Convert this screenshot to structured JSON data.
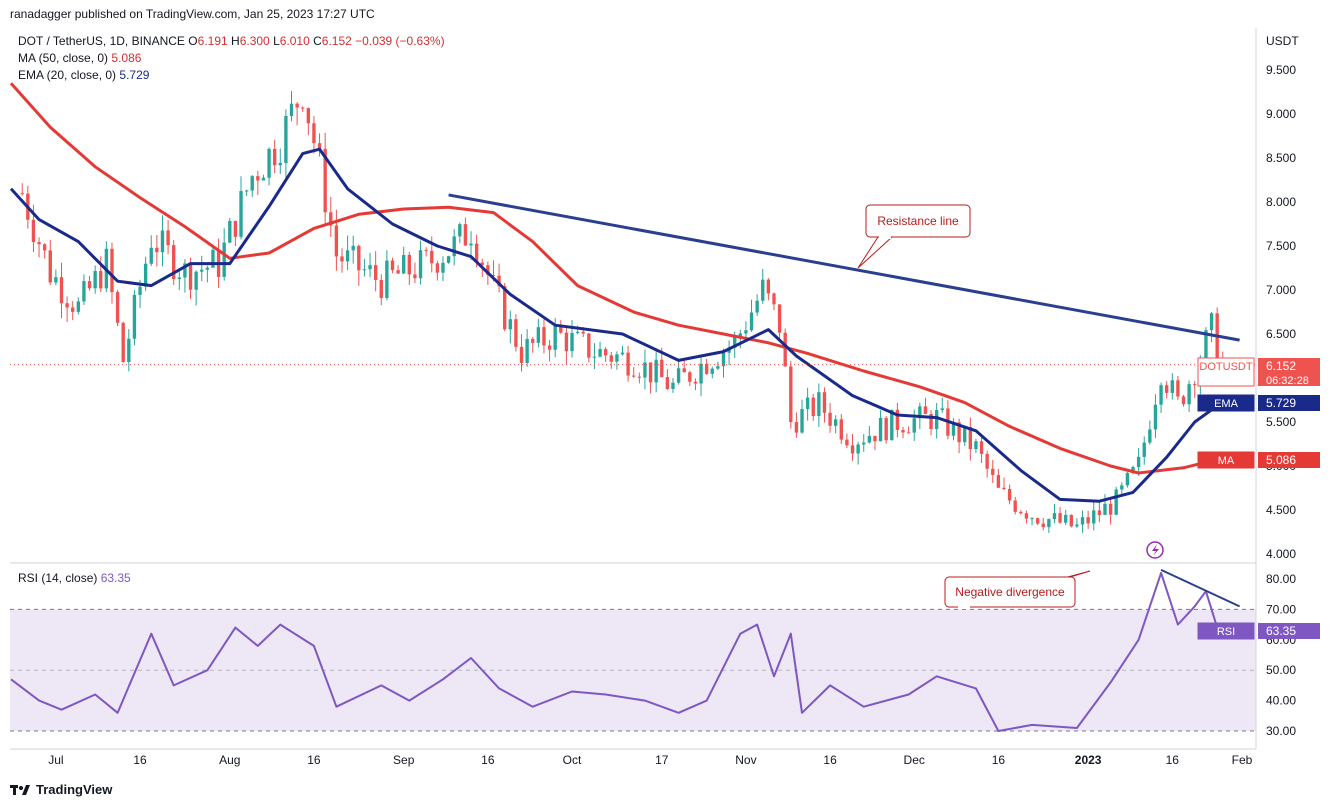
{
  "attribution": "ranadagger published on TradingView.com, Jan 25, 2023 17:27 UTC",
  "legend": {
    "symbol": "DOT / TetherUS, 1D, BINANCE",
    "o_label": "O",
    "o_value": "6.191",
    "h_label": "H",
    "h_value": "6.300",
    "l_label": "L",
    "l_value": "6.010",
    "c_label": "C",
    "c_value": "6.152",
    "change": "−0.039 (−0.63%)",
    "ma_label": "MA (50, close, 0)",
    "ma_value": "5.086",
    "ema_label": "EMA (20, close, 0)",
    "ema_value": "5.729",
    "rsi_label": "RSI (14, close)",
    "rsi_value": "63.35"
  },
  "price_axis": {
    "currency": "USDT",
    "ticks": [
      "9.500",
      "9.000",
      "8.500",
      "8.000",
      "7.500",
      "7.000",
      "6.500",
      "6.000",
      "5.500",
      "5.000",
      "4.500",
      "4.000"
    ]
  },
  "rsi_axis": {
    "ticks": [
      "80.00",
      "70.00",
      "60.00",
      "50.00",
      "40.00",
      "30.00"
    ]
  },
  "time_axis": [
    "Jul",
    "16",
    "Aug",
    "16",
    "Sep",
    "16",
    "Oct",
    "17",
    "Nov",
    "16",
    "Dec",
    "16",
    "2023",
    "16",
    "Feb"
  ],
  "tags": {
    "price_symbol": "DOTUSDT",
    "price_value": "6.152",
    "countdown": "06:32:28",
    "ema_label": "EMA",
    "ema_value": "5.729",
    "ma_label": "MA",
    "ma_value": "5.086",
    "rsi_label": "RSI",
    "rsi_value": "63.35"
  },
  "annotations": {
    "resistance": "Resistance line",
    "divergence": "Negative divergence"
  },
  "logo_text": "TradingView",
  "colors": {
    "up": "#26a69a",
    "down": "#ef5350",
    "ema": "#1a2a8a",
    "ma": "#e53935",
    "rsi": "#7e57c2",
    "rsi_band": "#ede7f6",
    "trend": "#2a3f8f"
  },
  "chart_data": {
    "type": "candlestick",
    "title": "DOT / TetherUS, 1D, BINANCE",
    "ylim": [
      3.95,
      9.8
    ],
    "rsi_ylim": [
      27,
      86
    ],
    "x_start": "2023-06-24",
    "x_range_days": 232,
    "price_anchors": [
      [
        "2022-06-25",
        8.1
      ],
      [
        "2022-06-30",
        7.2
      ],
      [
        "2022-07-05",
        6.8
      ],
      [
        "2022-07-10",
        7.3
      ],
      [
        "2022-07-13",
        6.2
      ],
      [
        "2022-07-18",
        7.6
      ],
      [
        "2022-07-24",
        7.2
      ],
      [
        "2022-07-30",
        7.3
      ],
      [
        "2022-08-05",
        8.3
      ],
      [
        "2022-08-10",
        8.7
      ],
      [
        "2022-08-14",
        9.3
      ],
      [
        "2022-08-17",
        8.4
      ],
      [
        "2022-08-20",
        7.4
      ],
      [
        "2022-08-28",
        7.1
      ],
      [
        "2022-09-05",
        7.3
      ],
      [
        "2022-09-10",
        7.5
      ],
      [
        "2022-09-13",
        7.7
      ],
      [
        "2022-09-17",
        7.0
      ],
      [
        "2022-09-22",
        6.3
      ],
      [
        "2022-09-28",
        6.5
      ],
      [
        "2022-10-05",
        6.3
      ],
      [
        "2022-10-12",
        6.2
      ],
      [
        "2022-10-19",
        5.9
      ],
      [
        "2022-10-25",
        6.2
      ],
      [
        "2022-10-30",
        6.4
      ],
      [
        "2022-11-04",
        7.0
      ],
      [
        "2022-11-07",
        6.6
      ],
      [
        "2022-11-09",
        5.5
      ],
      [
        "2022-11-14",
        5.7
      ],
      [
        "2022-11-20",
        5.3
      ],
      [
        "2022-11-28",
        5.5
      ],
      [
        "2022-12-05",
        5.55
      ],
      [
        "2022-12-12",
        5.2
      ],
      [
        "2022-12-16",
        4.7
      ],
      [
        "2022-12-22",
        4.45
      ],
      [
        "2022-12-30",
        4.3
      ],
      [
        "2023-01-06",
        4.6
      ],
      [
        "2023-01-10",
        5.0
      ],
      [
        "2023-01-14",
        6.1
      ],
      [
        "2023-01-17",
        5.7
      ],
      [
        "2023-01-20",
        6.1
      ],
      [
        "2023-01-23",
        6.55
      ],
      [
        "2023-01-25",
        6.15
      ]
    ],
    "ema20": [
      [
        "2022-06-23",
        8.15
      ],
      [
        "2022-06-28",
        7.8
      ],
      [
        "2022-07-05",
        7.55
      ],
      [
        "2022-07-12",
        7.1
      ],
      [
        "2022-07-18",
        7.05
      ],
      [
        "2022-07-25",
        7.3
      ],
      [
        "2022-08-01",
        7.3
      ],
      [
        "2022-08-08",
        7.95
      ],
      [
        "2022-08-14",
        8.55
      ],
      [
        "2022-08-17",
        8.6
      ],
      [
        "2022-08-22",
        8.15
      ],
      [
        "2022-08-30",
        7.75
      ],
      [
        "2022-09-07",
        7.5
      ],
      [
        "2022-09-13",
        7.38
      ],
      [
        "2022-09-20",
        6.95
      ],
      [
        "2022-09-28",
        6.6
      ],
      [
        "2022-10-10",
        6.5
      ],
      [
        "2022-10-20",
        6.2
      ],
      [
        "2022-10-28",
        6.3
      ],
      [
        "2022-11-05",
        6.55
      ],
      [
        "2022-11-10",
        6.25
      ],
      [
        "2022-11-20",
        5.8
      ],
      [
        "2022-11-28",
        5.58
      ],
      [
        "2022-12-05",
        5.55
      ],
      [
        "2022-12-12",
        5.4
      ],
      [
        "2022-12-20",
        4.95
      ],
      [
        "2022-12-27",
        4.62
      ],
      [
        "2023-01-03",
        4.6
      ],
      [
        "2023-01-09",
        4.7
      ],
      [
        "2023-01-15",
        5.1
      ],
      [
        "2023-01-20",
        5.5
      ],
      [
        "2023-01-25",
        5.73
      ]
    ],
    "ma50": [
      [
        "2022-06-23",
        9.35
      ],
      [
        "2022-06-30",
        8.85
      ],
      [
        "2022-07-08",
        8.4
      ],
      [
        "2022-07-16",
        8.05
      ],
      [
        "2022-07-24",
        7.72
      ],
      [
        "2022-08-01",
        7.36
      ],
      [
        "2022-08-08",
        7.42
      ],
      [
        "2022-08-16",
        7.7
      ],
      [
        "2022-08-24",
        7.86
      ],
      [
        "2022-09-01",
        7.92
      ],
      [
        "2022-09-09",
        7.94
      ],
      [
        "2022-09-17",
        7.88
      ],
      [
        "2022-09-24",
        7.55
      ],
      [
        "2022-10-02",
        7.05
      ],
      [
        "2022-10-12",
        6.75
      ],
      [
        "2022-10-20",
        6.6
      ],
      [
        "2022-10-28",
        6.5
      ],
      [
        "2022-11-05",
        6.4
      ],
      [
        "2022-11-12",
        6.28
      ],
      [
        "2022-11-22",
        6.08
      ],
      [
        "2022-12-02",
        5.9
      ],
      [
        "2022-12-10",
        5.72
      ],
      [
        "2022-12-18",
        5.45
      ],
      [
        "2022-12-27",
        5.2
      ],
      [
        "2023-01-05",
        5.0
      ],
      [
        "2023-01-10",
        4.92
      ],
      [
        "2023-01-18",
        4.98
      ],
      [
        "2023-01-25",
        5.09
      ]
    ],
    "rsi14": [
      [
        "2022-06-23",
        47
      ],
      [
        "2022-06-28",
        40
      ],
      [
        "2022-07-02",
        37
      ],
      [
        "2022-07-08",
        42
      ],
      [
        "2022-07-12",
        36
      ],
      [
        "2022-07-18",
        62
      ],
      [
        "2022-07-22",
        45
      ],
      [
        "2022-07-28",
        50
      ],
      [
        "2022-08-02",
        64
      ],
      [
        "2022-08-06",
        58
      ],
      [
        "2022-08-10",
        65
      ],
      [
        "2022-08-16",
        58
      ],
      [
        "2022-08-20",
        38
      ],
      [
        "2022-08-28",
        45
      ],
      [
        "2022-09-02",
        40
      ],
      [
        "2022-09-08",
        47
      ],
      [
        "2022-09-13",
        54
      ],
      [
        "2022-09-18",
        44
      ],
      [
        "2022-09-24",
        38
      ],
      [
        "2022-10-01",
        43
      ],
      [
        "2022-10-07",
        42
      ],
      [
        "2022-10-14",
        40
      ],
      [
        "2022-10-20",
        36
      ],
      [
        "2022-10-25",
        40
      ],
      [
        "2022-10-31",
        62
      ],
      [
        "2022-11-03",
        65
      ],
      [
        "2022-11-06",
        48
      ],
      [
        "2022-11-09",
        62
      ],
      [
        "2022-11-11",
        36
      ],
      [
        "2022-11-16",
        45
      ],
      [
        "2022-11-22",
        38
      ],
      [
        "2022-11-30",
        42
      ],
      [
        "2022-12-05",
        48
      ],
      [
        "2022-12-12",
        44
      ],
      [
        "2022-12-16",
        30
      ],
      [
        "2022-12-22",
        32
      ],
      [
        "2022-12-30",
        31
      ],
      [
        "2023-01-05",
        46
      ],
      [
        "2023-01-10",
        60
      ],
      [
        "2023-01-14",
        82
      ],
      [
        "2023-01-17",
        65
      ],
      [
        "2023-01-20",
        71
      ],
      [
        "2023-01-22",
        76
      ],
      [
        "2023-01-24",
        64
      ],
      [
        "2023-01-25",
        63.35
      ]
    ],
    "resistance_line": [
      [
        "2022-09-09",
        8.08
      ],
      [
        "2023-01-28",
        6.43
      ]
    ],
    "rsi_divergence": [
      [
        "2023-01-14",
        83
      ],
      [
        "2023-01-28",
        71
      ]
    ],
    "last_close": 6.152,
    "rsi_levels": [
      70,
      30
    ]
  }
}
